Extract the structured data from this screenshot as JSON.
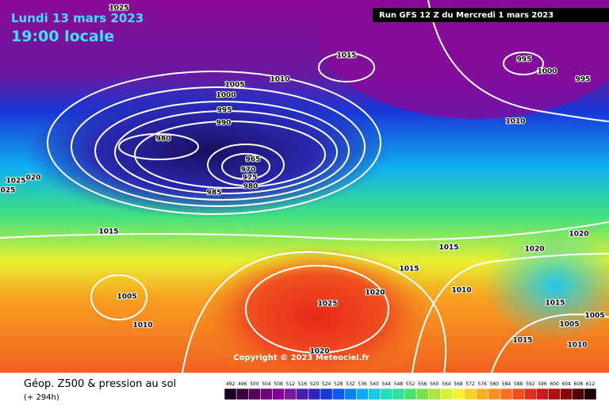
{
  "header": {
    "date": "Lundi 13 mars 2023",
    "time": "19:00 locale",
    "run": "Run GFS 12 Z du Mercredi 1 mars 2023"
  },
  "isobar_labels": [
    "1025",
    "1015",
    "995",
    "1000",
    "995",
    "1005",
    "1010",
    "1000",
    "995",
    "990",
    "980",
    "965",
    "970",
    "975",
    "980",
    "985",
    "1010",
    "1025",
    "020",
    "025",
    "1015",
    "1020",
    "1020",
    "1015",
    "1015",
    "1020",
    "1010",
    "1005",
    "1025",
    "1015",
    "1005",
    "1010",
    "1005",
    "1015",
    "1010",
    "1020"
  ],
  "copyright": "Copyright © 2023 Meteociel.fr",
  "footer": {
    "title": "Géop. Z500 & pression au sol",
    "lead": "(+ 294h)"
  },
  "scale": {
    "values": [
      492,
      496,
      500,
      504,
      508,
      512,
      516,
      520,
      524,
      528,
      532,
      536,
      540,
      544,
      548,
      552,
      556,
      560,
      564,
      568,
      572,
      576,
      580,
      584,
      588,
      592,
      596,
      600,
      604,
      608,
      612
    ],
    "colors": [
      "#1a0022",
      "#3a0040",
      "#56005c",
      "#6e0078",
      "#82008e",
      "#7a1a9a",
      "#4a1ea8",
      "#2a24c0",
      "#1838d8",
      "#1058f0",
      "#0c80f8",
      "#10a8f8",
      "#18c8e8",
      "#20dcc0",
      "#30e098",
      "#48e070",
      "#78e050",
      "#a8e840",
      "#d8f038",
      "#f8f030",
      "#f8d028",
      "#f8b020",
      "#f89020",
      "#f87020",
      "#f05020",
      "#e03020",
      "#d01818",
      "#b01010",
      "#880808",
      "#500404",
      "#200000"
    ]
  }
}
